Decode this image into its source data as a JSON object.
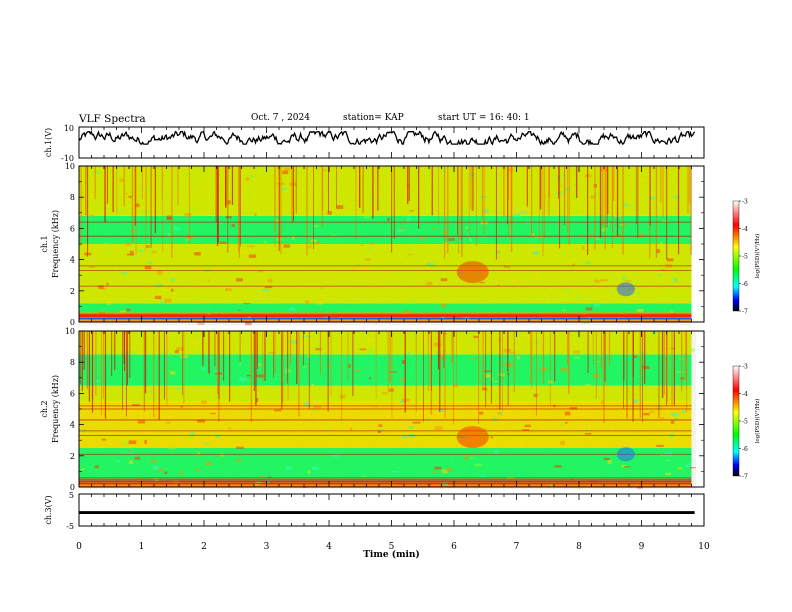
{
  "header": {
    "title": "VLF Spectra",
    "date": "Oct. 7  , 2024",
    "station": "station= KAP",
    "start_time": "start  UT  =   16: 40: 1"
  },
  "colorbar": {
    "label": "log(PSD)(V²/Hz)",
    "ticks": [
      "-3",
      "-4",
      "-5",
      "-6",
      "-7"
    ],
    "colors": [
      "#ffffff",
      "#ff0000",
      "#ffff00",
      "#00ff00",
      "#00ffff",
      "#0000ff",
      "#000000"
    ]
  },
  "chart_data": [
    {
      "type": "line",
      "name": "ch1-waveform",
      "ylabel": "ch.1(V)",
      "ylim": [
        -10,
        10
      ],
      "yticks": [
        "10",
        "-10"
      ],
      "xlim": [
        0,
        10
      ],
      "approx_mean": 2,
      "approx_range": [
        -1,
        7
      ]
    },
    {
      "type": "heatmap",
      "name": "ch1-spectrogram",
      "ylabel_channel": "ch.1",
      "ylabel": "Frequency  (kHz)",
      "ylim": [
        0,
        10
      ],
      "yticks": [
        "0",
        "2",
        "4",
        "6",
        "8",
        "10"
      ],
      "xlim": [
        0,
        10
      ],
      "data_end_min": 9.8,
      "bands_khz": [
        {
          "from": 0,
          "to": 0.6,
          "level": "high"
        },
        {
          "from": 0.6,
          "to": 1.2,
          "level": "low"
        },
        {
          "from": 1.2,
          "to": 5.0,
          "level": "mid"
        },
        {
          "from": 5.0,
          "to": 6.8,
          "level": "low"
        },
        {
          "from": 6.8,
          "to": 10,
          "level": "mid"
        }
      ],
      "lines_khz": [
        0.4,
        2.3,
        3.3,
        3.6,
        5.5,
        6.4
      ],
      "hotspot": {
        "time_min": 6.3,
        "freq_khz": 3.2,
        "level": "high"
      }
    },
    {
      "type": "heatmap",
      "name": "ch2-spectrogram",
      "ylabel_channel": "ch.2",
      "ylabel": "Frequency  (kHz)",
      "ylim": [
        0,
        10
      ],
      "yticks": [
        "0",
        "2",
        "4",
        "6",
        "8",
        "10"
      ],
      "xlim": [
        0,
        10
      ],
      "data_end_min": 9.8,
      "bands_khz": [
        {
          "from": 0,
          "to": 0.5,
          "level": "high"
        },
        {
          "from": 0.5,
          "to": 2.5,
          "level": "low"
        },
        {
          "from": 2.5,
          "to": 5.5,
          "level": "mid-high"
        },
        {
          "from": 5.5,
          "to": 6.5,
          "level": "mid"
        },
        {
          "from": 6.5,
          "to": 8.5,
          "level": "low"
        },
        {
          "from": 8.5,
          "to": 10,
          "level": "mid"
        }
      ],
      "lines_khz": [
        2.1,
        3.3,
        3.6,
        4.3,
        5.0,
        5.2
      ],
      "hotspot": {
        "time_min": 6.3,
        "freq_khz": 3.2,
        "level": "high"
      }
    },
    {
      "type": "line",
      "name": "ch3-waveform",
      "ylabel": "ch.3(V)",
      "ylim": [
        -5,
        5
      ],
      "yticks": [
        "5",
        "-5"
      ],
      "xlim": [
        0,
        10
      ],
      "approx_mean": -0.8,
      "band_thickness_v": 0.9
    }
  ],
  "x_axis": {
    "label": "Time  (min)",
    "ticks": [
      "0",
      "1",
      "2",
      "3",
      "4",
      "5",
      "6",
      "7",
      "8",
      "9",
      "10"
    ]
  }
}
